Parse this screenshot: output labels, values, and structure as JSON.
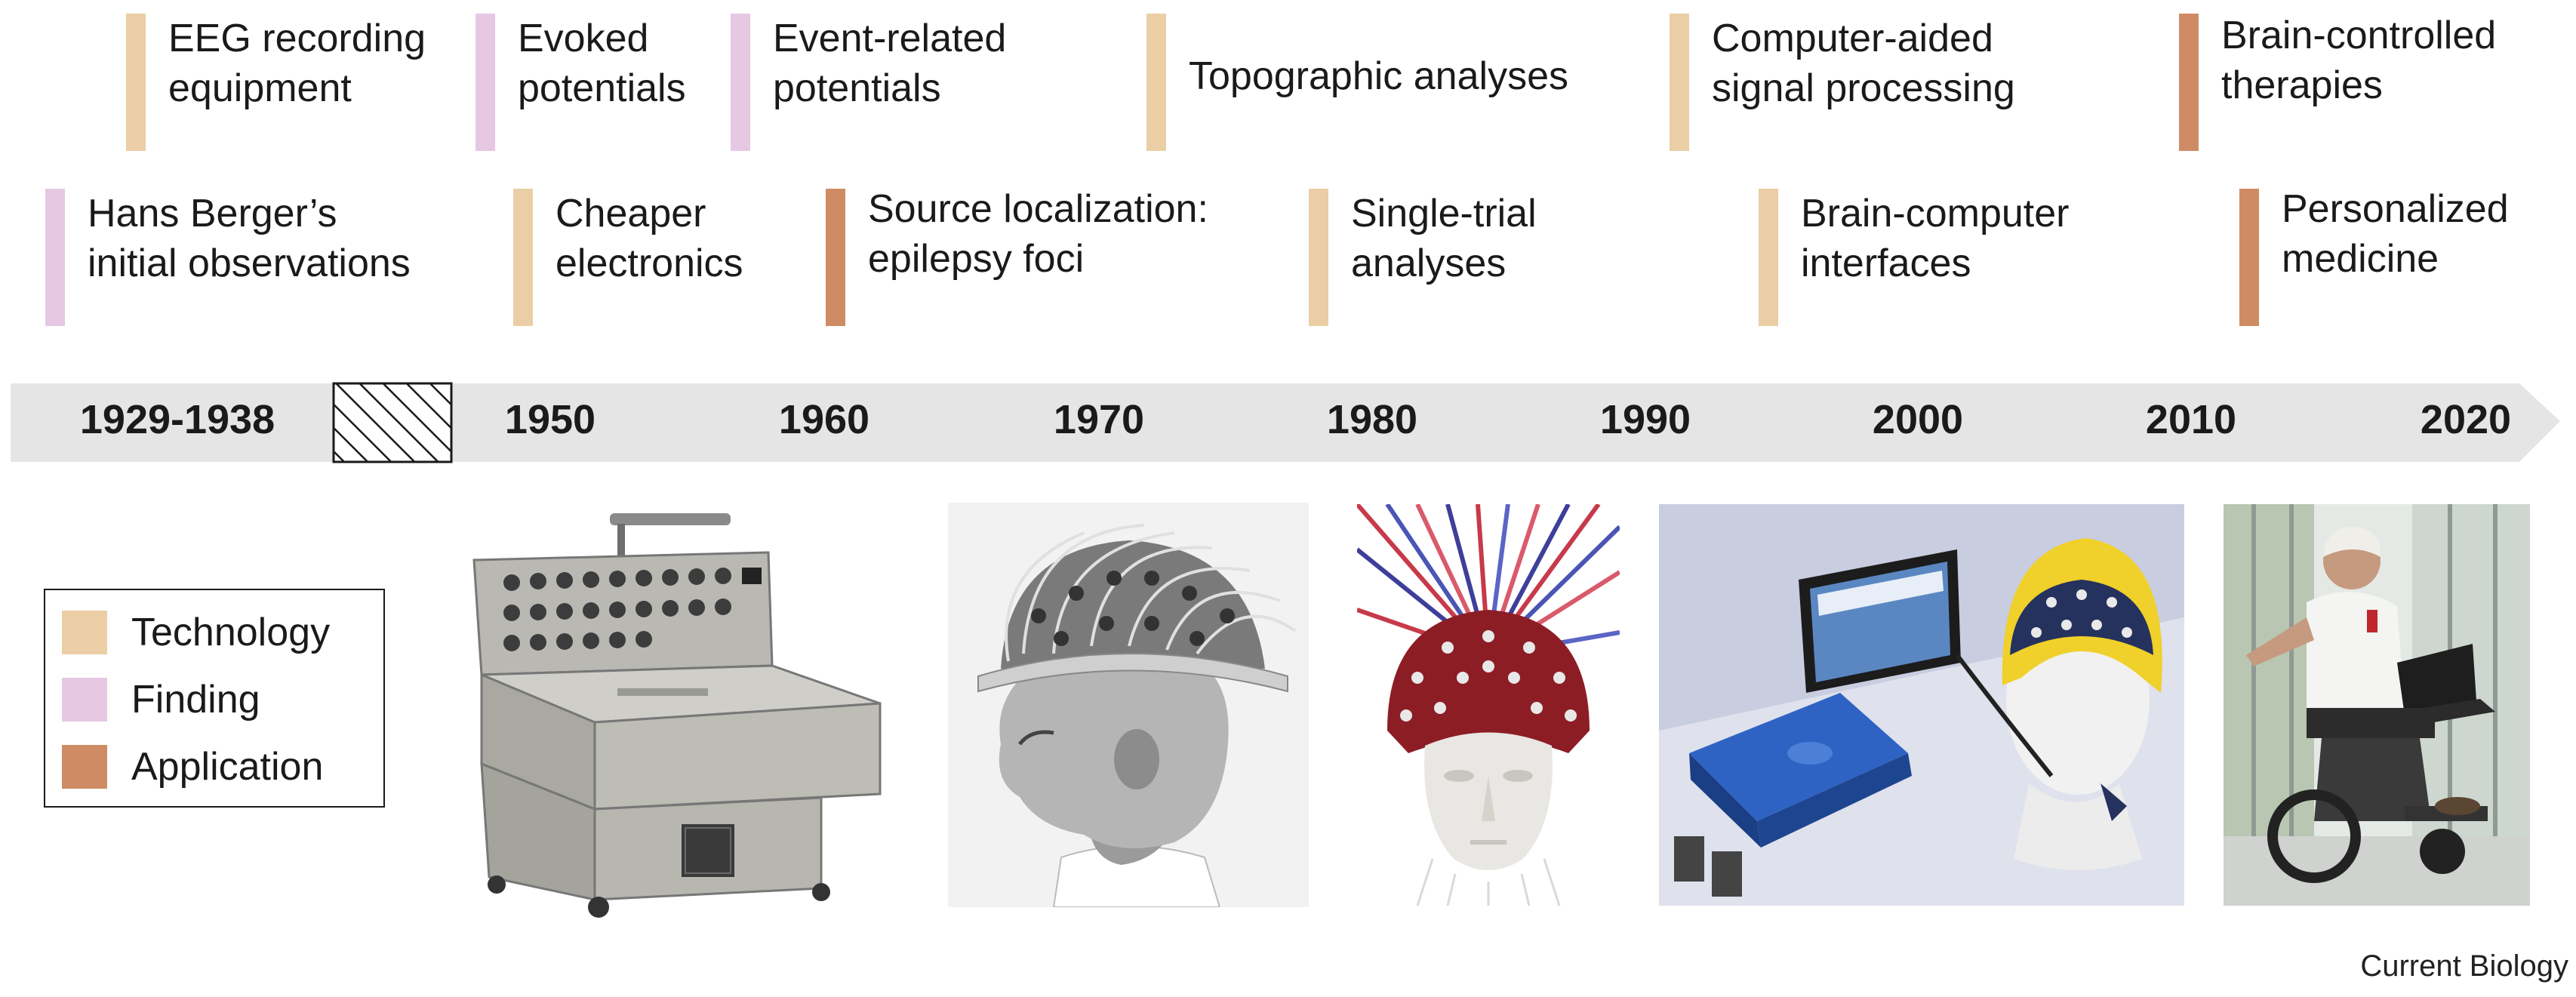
{
  "colors": {
    "technology": "#ebcea6",
    "finding": "#e6c8e3",
    "application": "#cf8c64",
    "arrow": "#e5e5e5"
  },
  "events_top": [
    {
      "label": "EEG recording\nequipment",
      "category": "technology"
    },
    {
      "label": "Evoked\npotentials",
      "category": "finding"
    },
    {
      "label": "Event-related\npotentials",
      "category": "finding"
    },
    {
      "label": "Topographic analyses",
      "category": "technology"
    },
    {
      "label": "Computer-aided\nsignal processing",
      "category": "technology"
    },
    {
      "label": "Brain-controlled\ntherapies",
      "category": "application"
    }
  ],
  "events_bottom": [
    {
      "label": "Hans Berger’s\ninitial observations",
      "category": "finding"
    },
    {
      "label": "Cheaper\nelectronics",
      "category": "technology"
    },
    {
      "label": "Source localization:\nepilepsy foci",
      "category": "application"
    },
    {
      "label": "Single-trial\nanalyses",
      "category": "technology"
    },
    {
      "label": "Brain-computer\ninterfaces",
      "category": "technology"
    },
    {
      "label": "Personalized\nmedicine",
      "category": "application"
    }
  ],
  "years": [
    "1929-1938",
    "1950",
    "1960",
    "1970",
    "1980",
    "1990",
    "2000",
    "2010",
    "2020"
  ],
  "legend": [
    {
      "label": "Technology",
      "category": "technology"
    },
    {
      "label": "Finding",
      "category": "finding"
    },
    {
      "label": "Application",
      "category": "application"
    }
  ],
  "photos": [
    {
      "icon": "eeg-machine-icon"
    },
    {
      "icon": "electrode-head-photo-icon"
    },
    {
      "icon": "electrode-cap-mannequin-icon"
    },
    {
      "icon": "wireless-eeg-tablet-icon"
    },
    {
      "icon": "bci-wheelchair-icon"
    }
  ],
  "credit": "Current Biology"
}
